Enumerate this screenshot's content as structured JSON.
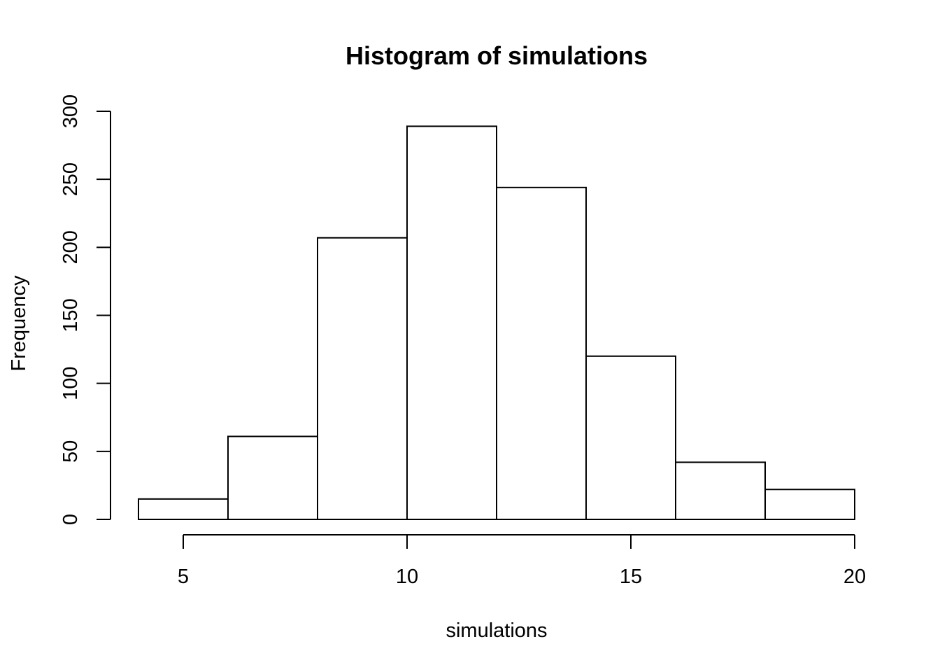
{
  "chart_data": {
    "type": "bar",
    "title": "Histogram of simulations",
    "xlabel": "simulations",
    "ylabel": "Frequency",
    "bins": [
      {
        "start": 4,
        "end": 6,
        "count": 15
      },
      {
        "start": 6,
        "end": 8,
        "count": 61
      },
      {
        "start": 8,
        "end": 10,
        "count": 207
      },
      {
        "start": 10,
        "end": 12,
        "count": 289
      },
      {
        "start": 12,
        "end": 14,
        "count": 244
      },
      {
        "start": 14,
        "end": 16,
        "count": 120
      },
      {
        "start": 16,
        "end": 18,
        "count": 42
      },
      {
        "start": 18,
        "end": 20,
        "count": 22
      }
    ],
    "xlim": [
      4,
      20
    ],
    "ylim": [
      0,
      300
    ],
    "x_ticks": [
      5,
      10,
      15,
      20
    ],
    "y_ticks": [
      0,
      50,
      100,
      150,
      200,
      250,
      300
    ],
    "x_tick_labels": [
      "5",
      "10",
      "15",
      "20"
    ],
    "y_tick_labels": [
      "0",
      "50",
      "100",
      "150",
      "200",
      "250",
      "300"
    ],
    "grid": false,
    "colors": {
      "bar_fill": "#ffffff",
      "bar_stroke": "#000000",
      "axis": "#000000",
      "background": "#ffffff"
    }
  }
}
